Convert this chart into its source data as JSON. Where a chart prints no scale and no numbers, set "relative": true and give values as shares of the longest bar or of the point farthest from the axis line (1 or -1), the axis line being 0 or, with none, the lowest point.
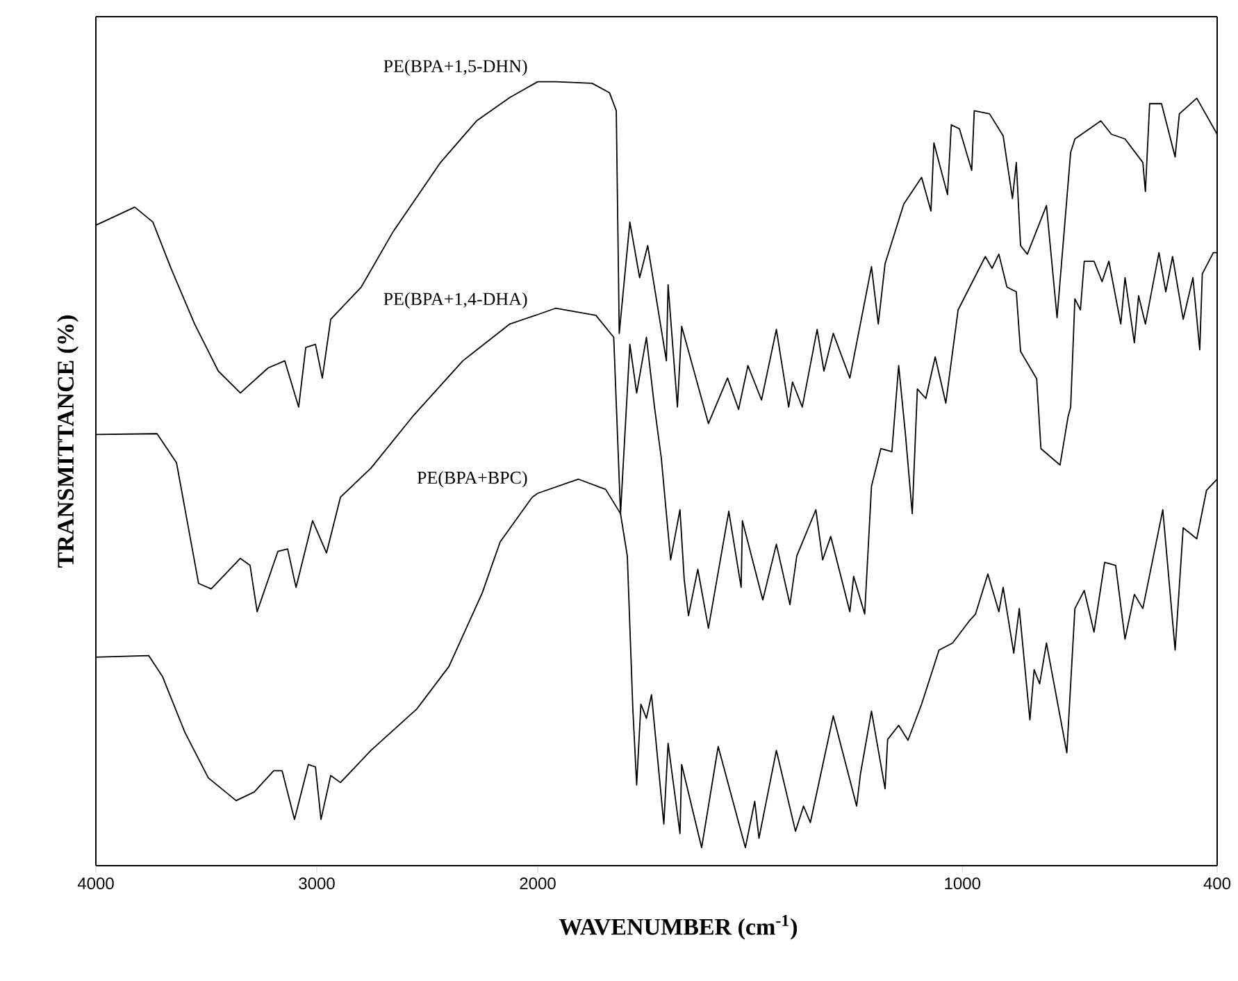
{
  "chart_data": [
    {
      "type": "line",
      "relative": true,
      "ylabel": "TRANSMITTANCE (%)",
      "xlim": [
        4000,
        2000
      ],
      "xticks": [
        4000,
        3000
      ],
      "legend": false,
      "grid": false,
      "series": [
        {
          "name": "PE(BPA+1,5-DHN)",
          "color": "#000000",
          "x": [
            4000,
            3824,
            3742,
            3660,
            3553,
            3446,
            3346,
            3220,
            3145,
            3082,
            3050,
            3006,
            2975,
            2937,
            2799,
            2654,
            2440,
            2277,
            2126,
            2000
          ],
          "values": [
            0.817,
            0.84,
            0.821,
            0.762,
            0.691,
            0.631,
            0.603,
            0.635,
            0.644,
            0.585,
            0.661,
            0.665,
            0.622,
            0.697,
            0.738,
            0.809,
            0.897,
            0.95,
            0.98,
            1.0
          ]
        },
        {
          "name": "PE(BPA+1,4-DHA)",
          "color": "#000000",
          "x": [
            4000,
            3723,
            3635,
            3535,
            3478,
            3346,
            3302,
            3270,
            3176,
            3132,
            3094,
            3019,
            2956,
            2893,
            2755,
            2566,
            2339,
            2126,
            2000
          ],
          "values": [
            0.55,
            0.551,
            0.514,
            0.36,
            0.353,
            0.392,
            0.383,
            0.324,
            0.401,
            0.404,
            0.355,
            0.44,
            0.399,
            0.47,
            0.507,
            0.573,
            0.644,
            0.691,
            0.703
          ]
        },
        {
          "name": "PE(BPA+BPC)",
          "color": "#000000",
          "x": [
            4000,
            3761,
            3698,
            3597,
            3491,
            3365,
            3283,
            3195,
            3157,
            3101,
            3038,
            3006,
            2981,
            2937,
            2893,
            2755,
            2547,
            2402,
            2251,
            2170,
            2025,
            2000
          ],
          "values": [
            0.266,
            0.268,
            0.241,
            0.17,
            0.112,
            0.083,
            0.094,
            0.121,
            0.121,
            0.059,
            0.129,
            0.126,
            0.059,
            0.115,
            0.106,
            0.147,
            0.2,
            0.254,
            0.348,
            0.413,
            0.47,
            0.475
          ]
        }
      ]
    },
    {
      "type": "line",
      "relative": true,
      "xlabel": "WAVENUMBER (cm$^{-1}$)",
      "xlim": [
        2000,
        400
      ],
      "xticks": [
        2000,
        1000,
        400
      ],
      "legend": false,
      "grid": false,
      "series": [
        {
          "color": "#000000",
          "x": [
            2000,
            1958,
            1872,
            1831,
            1815,
            1808,
            1783,
            1760,
            1741,
            1697,
            1693,
            1671,
            1661,
            1598,
            1553,
            1527,
            1505,
            1473,
            1438,
            1409,
            1400,
            1377,
            1342,
            1326,
            1304,
            1265,
            1214,
            1198,
            1182,
            1138,
            1096,
            1074,
            1067,
            1035,
            1026,
            1007,
            978,
            972,
            936,
            904,
            882,
            873,
            863,
            847,
            802,
            777,
            745,
            735,
            674,
            649,
            617,
            575,
            569,
            559,
            531,
            499,
            489,
            448,
            400
          ],
          "values": [
            1.0,
            1.0,
            0.998,
            0.986,
            0.963,
            0.679,
            0.821,
            0.75,
            0.791,
            0.644,
            0.741,
            0.585,
            0.688,
            0.564,
            0.622,
            0.582,
            0.638,
            0.594,
            0.684,
            0.585,
            0.617,
            0.585,
            0.684,
            0.631,
            0.679,
            0.622,
            0.764,
            0.691,
            0.768,
            0.844,
            0.878,
            0.835,
            0.922,
            0.856,
            0.945,
            0.94,
            0.887,
            0.963,
            0.959,
            0.931,
            0.851,
            0.897,
            0.791,
            0.78,
            0.842,
            0.699,
            0.91,
            0.927,
            0.95,
            0.933,
            0.927,
            0.897,
            0.86,
            0.972,
            0.972,
            0.904,
            0.959,
            0.979,
            0.933
          ]
        },
        {
          "color": "#000000",
          "x": [
            2000,
            1958,
            1863,
            1821,
            1805,
            1783,
            1767,
            1744,
            1725,
            1709,
            1687,
            1665,
            1655,
            1645,
            1623,
            1598,
            1550,
            1521,
            1518,
            1470,
            1438,
            1406,
            1390,
            1345,
            1329,
            1310,
            1265,
            1256,
            1230,
            1214,
            1192,
            1166,
            1150,
            1134,
            1118,
            1106,
            1086,
            1064,
            1039,
            1010,
            946,
            930,
            914,
            895,
            873,
            863,
            825,
            815,
            770,
            751,
            745,
            735,
            722,
            713,
            690,
            671,
            655,
            627,
            617,
            595,
            585,
            569,
            537,
            521,
            505,
            480,
            457,
            441,
            435,
            409,
            400
          ],
          "values": [
            0.703,
            0.711,
            0.702,
            0.674,
            0.449,
            0.665,
            0.603,
            0.674,
            0.585,
            0.52,
            0.39,
            0.454,
            0.365,
            0.319,
            0.378,
            0.303,
            0.452,
            0.355,
            0.44,
            0.339,
            0.41,
            0.333,
            0.395,
            0.454,
            0.39,
            0.42,
            0.324,
            0.369,
            0.321,
            0.484,
            0.532,
            0.528,
            0.638,
            0.55,
            0.449,
            0.608,
            0.596,
            0.649,
            0.59,
            0.709,
            0.777,
            0.762,
            0.78,
            0.738,
            0.732,
            0.656,
            0.621,
            0.532,
            0.511,
            0.573,
            0.585,
            0.723,
            0.709,
            0.771,
            0.771,
            0.745,
            0.771,
            0.691,
            0.75,
            0.667,
            0.727,
            0.691,
            0.782,
            0.732,
            0.777,
            0.697,
            0.75,
            0.658,
            0.755,
            0.782,
            0.782
          ]
        },
        {
          "color": "#000000",
          "x": [
            2000,
            1904,
            1840,
            1805,
            1789,
            1776,
            1767,
            1757,
            1744,
            1732,
            1703,
            1693,
            1665,
            1661,
            1614,
            1575,
            1511,
            1489,
            1479,
            1438,
            1393,
            1374,
            1358,
            1304,
            1249,
            1240,
            1214,
            1182,
            1176,
            1150,
            1128,
            1096,
            1055,
            1023,
            984,
            969,
            940,
            914,
            904,
            879,
            866,
            841,
            831,
            818,
            802,
            754,
            735,
            713,
            690,
            665,
            639,
            617,
            595,
            575,
            528,
            499,
            480,
            448,
            425,
            400
          ],
          "values": [
            0.475,
            0.493,
            0.48,
            0.449,
            0.395,
            0.2,
            0.103,
            0.206,
            0.188,
            0.218,
            0.053,
            0.156,
            0.041,
            0.129,
            0.023,
            0.152,
            0.023,
            0.082,
            0.035,
            0.147,
            0.044,
            0.076,
            0.055,
            0.191,
            0.076,
            0.117,
            0.197,
            0.098,
            0.161,
            0.179,
            0.16,
            0.206,
            0.275,
            0.284,
            0.312,
            0.321,
            0.372,
            0.324,
            0.355,
            0.271,
            0.328,
            0.186,
            0.25,
            0.232,
            0.284,
            0.144,
            0.328,
            0.351,
            0.298,
            0.387,
            0.383,
            0.289,
            0.346,
            0.328,
            0.454,
            0.275,
            0.431,
            0.417,
            0.479,
            0.493
          ]
        }
      ]
    }
  ]
}
